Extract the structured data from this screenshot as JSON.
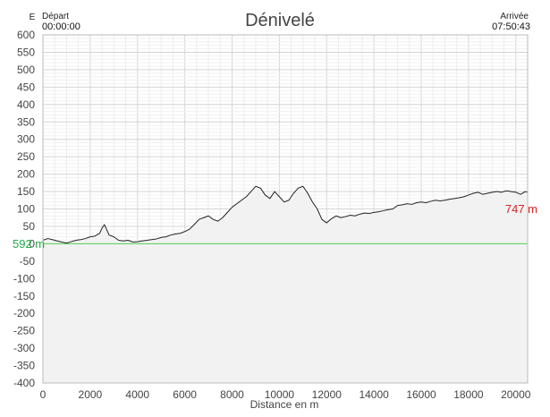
{
  "chart_data": {
    "type": "area",
    "title": "Dénivelé",
    "xlabel": "Distance en m",
    "ylabel": "",
    "y_unit_mark": "E",
    "xlim": [
      0,
      20500
    ],
    "ylim": [
      -400,
      600
    ],
    "x_ticks": [
      0,
      2000,
      4000,
      6000,
      8000,
      10000,
      12000,
      14000,
      16000,
      18000,
      20000
    ],
    "y_ticks": [
      600,
      550,
      500,
      450,
      400,
      350,
      300,
      250,
      200,
      150,
      100,
      50,
      0,
      -50,
      -100,
      -150,
      -200,
      -250,
      -300,
      -350,
      -400
    ],
    "grid": true,
    "start": {
      "label": "Départ",
      "time": "00:00:00"
    },
    "end": {
      "label": "Arrivée",
      "time": "07:50:43"
    },
    "annotations": [
      {
        "text": "592 m",
        "color": "#22aa44"
      },
      {
        "text": "747 m",
        "color": "#dd2222"
      }
    ],
    "baseline_color": "#55cc55",
    "line_color": "#222222",
    "fill_color": "#f2f2f2",
    "series": [
      {
        "x": [
          0,
          200,
          400,
          600,
          800,
          1000,
          1200,
          1400,
          1600,
          1800,
          2000,
          2200,
          2400,
          2500,
          2600,
          2700,
          2800,
          3000,
          3200,
          3400,
          3600,
          3800,
          4000,
          4200,
          4400,
          4600,
          4800,
          5000,
          5200,
          5400,
          5600,
          5800,
          6000,
          6200,
          6400,
          6600,
          6800,
          7000,
          7200,
          7400,
          7600,
          7800,
          8000,
          8200,
          8400,
          8600,
          8800,
          9000,
          9200,
          9400,
          9600,
          9800,
          10000,
          10200,
          10400,
          10600,
          10800,
          11000,
          11200,
          11400,
          11600,
          11800,
          12000,
          12200,
          12400,
          12600,
          12800,
          13000,
          13200,
          13400,
          13600,
          13800,
          14000,
          14200,
          14400,
          14600,
          14800,
          15000,
          15200,
          15400,
          15600,
          15800,
          16000,
          16200,
          16400,
          16600,
          16800,
          17000,
          17200,
          17400,
          17600,
          17800,
          18000,
          18200,
          18400,
          18600,
          18800,
          19000,
          19200,
          19400,
          19600,
          19800,
          20000,
          20200,
          20400,
          20500
        ],
        "y": [
          10,
          15,
          12,
          8,
          5,
          2,
          6,
          10,
          12,
          15,
          20,
          22,
          30,
          45,
          55,
          40,
          25,
          20,
          10,
          8,
          10,
          5,
          6,
          8,
          10,
          12,
          14,
          18,
          20,
          25,
          28,
          30,
          35,
          42,
          55,
          70,
          75,
          80,
          70,
          65,
          75,
          90,
          105,
          115,
          125,
          135,
          150,
          165,
          160,
          140,
          130,
          150,
          135,
          120,
          125,
          145,
          160,
          165,
          145,
          120,
          100,
          70,
          60,
          72,
          80,
          75,
          78,
          82,
          80,
          85,
          88,
          87,
          90,
          92,
          95,
          98,
          100,
          110,
          112,
          115,
          113,
          118,
          120,
          118,
          122,
          125,
          123,
          125,
          128,
          130,
          132,
          135,
          140,
          145,
          148,
          142,
          145,
          148,
          150,
          148,
          152,
          150,
          148,
          142,
          150,
          148
        ]
      }
    ]
  }
}
